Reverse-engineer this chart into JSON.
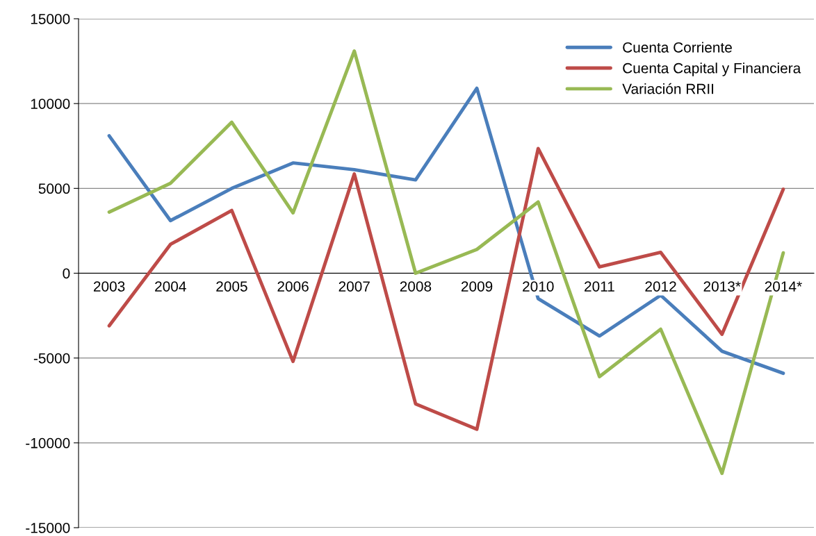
{
  "chart_data": {
    "type": "line",
    "categories": [
      "2003",
      "2004",
      "2005",
      "2006",
      "2007",
      "2008",
      "2009",
      "2010",
      "2011",
      "2012",
      "2013*",
      "2014*"
    ],
    "series": [
      {
        "name": "Cuenta Corriente",
        "color": "#4a7ebb",
        "values": [
          8100,
          3100,
          5000,
          6500,
          6100,
          5500,
          10900,
          -1500,
          -3700,
          -1300,
          -4600,
          -5900
        ]
      },
      {
        "name": "Cuenta Capital y Financiera",
        "color": "#be4b48",
        "values": [
          -3100,
          1700,
          3700,
          -5200,
          5850,
          -7700,
          -9200,
          7350,
          370,
          1230,
          -3600,
          4950
        ]
      },
      {
        "name": "Variación RRII",
        "color": "#98b954",
        "values": [
          3600,
          5300,
          8900,
          3560,
          13100,
          0,
          1400,
          4200,
          -6100,
          -3300,
          -11800,
          1200
        ]
      }
    ],
    "ylim": [
      -15000,
      15000
    ],
    "yticks": [
      -15000,
      -10000,
      -5000,
      0,
      5000,
      10000,
      15000
    ],
    "grid": "y",
    "legend": "top right",
    "marker": "none",
    "line_style": "solid"
  }
}
